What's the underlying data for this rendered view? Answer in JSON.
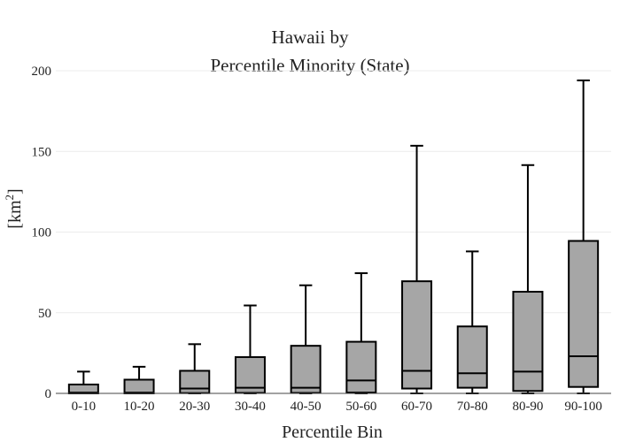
{
  "chart_data": {
    "type": "box",
    "title_lines": [
      "Hawaii  by",
      "Percentile Minority (State)"
    ],
    "xlabel": "Percentile Bin",
    "ylabel_base": "[km",
    "ylabel_sup": "2",
    "ylabel_end": "]",
    "ylim": [
      0,
      210
    ],
    "yticks": [
      0,
      50,
      100,
      150,
      200
    ],
    "ytick_labels": [
      "0",
      "50",
      "100",
      "150",
      "200"
    ],
    "grid": true,
    "categories": [
      "0-10",
      "10-20",
      "20-30",
      "30-40",
      "40-50",
      "50-60",
      "60-70",
      "70-80",
      "80-90",
      "90-100"
    ],
    "boxes": [
      {
        "min": 0,
        "q1": 0,
        "median": 0.5,
        "q3": 5.5,
        "max": 13.5
      },
      {
        "min": 0,
        "q1": 0,
        "median": 0.5,
        "q3": 8.5,
        "max": 16.5
      },
      {
        "min": 0,
        "q1": 0.2,
        "median": 3,
        "q3": 14,
        "max": 30.5
      },
      {
        "min": 0,
        "q1": 0.3,
        "median": 3.5,
        "q3": 22.5,
        "max": 54.5
      },
      {
        "min": 0,
        "q1": 0.3,
        "median": 3.5,
        "q3": 29.5,
        "max": 67
      },
      {
        "min": 0,
        "q1": 0.5,
        "median": 8,
        "q3": 32,
        "max": 74.5
      },
      {
        "min": 0,
        "q1": 3,
        "median": 14,
        "q3": 69.5,
        "max": 153.5
      },
      {
        "min": 0,
        "q1": 3.5,
        "median": 12.5,
        "q3": 41.5,
        "max": 88
      },
      {
        "min": 0,
        "q1": 1.5,
        "median": 13.5,
        "q3": 63,
        "max": 141.5
      },
      {
        "min": 0,
        "q1": 4,
        "median": 23,
        "q3": 94.5,
        "max": 194
      }
    ],
    "box_fill": "#a6a6a6",
    "box_stroke": "#000000"
  }
}
